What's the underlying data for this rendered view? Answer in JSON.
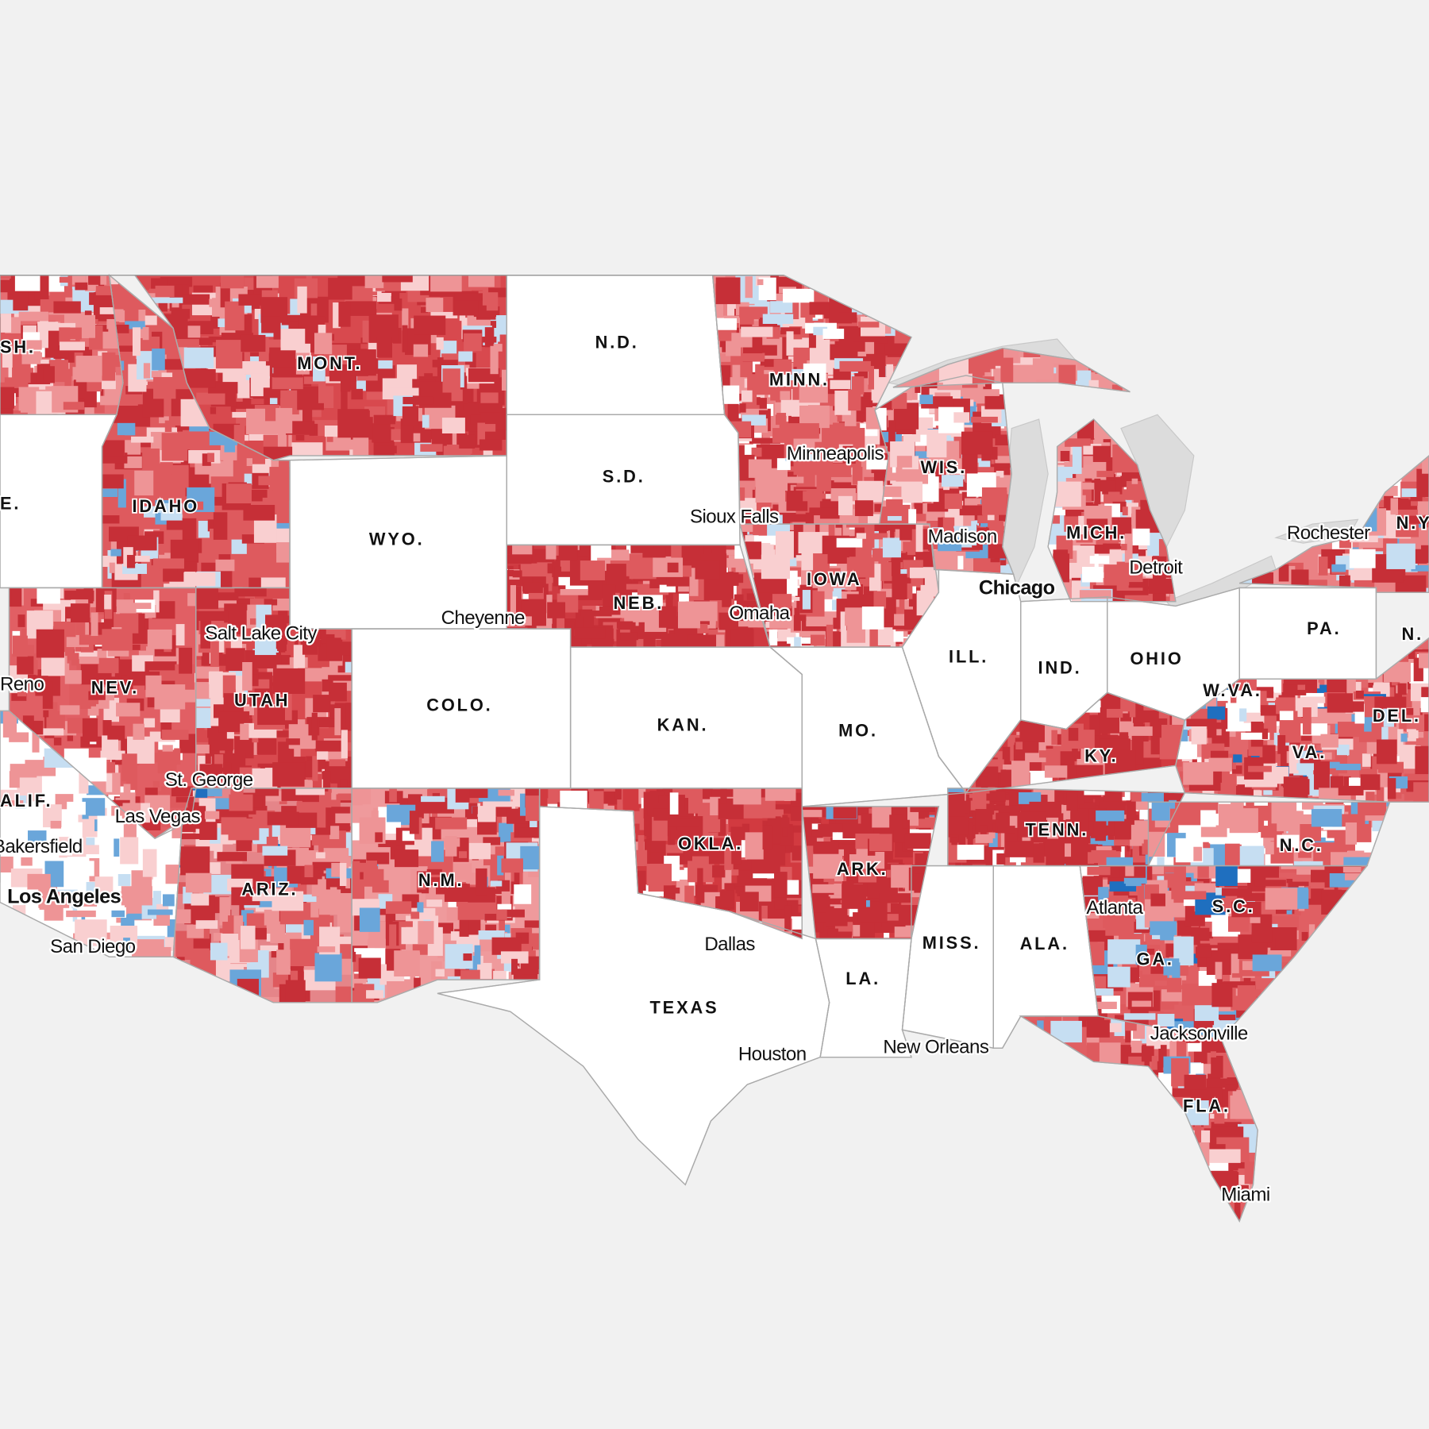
{
  "map": {
    "state_labels": [
      "SH.",
      "MONT.",
      "N.D.",
      "MINN.",
      "S.D.",
      "IDAHO",
      "E.",
      "WYO.",
      "WIS.",
      "MICH.",
      "N.Y",
      "NEB.",
      "IOWA",
      "PA.",
      "N.",
      "ILL.",
      "IND.",
      "OHIO",
      "NEV.",
      "UTAH",
      "COLO.",
      "KAN.",
      "MO.",
      "W.VA.",
      "DEL.",
      "KY.",
      "VA.",
      "ALIF.",
      "TENN.",
      "OKLA.",
      "N.C.",
      "ARK.",
      "ARIZ.",
      "N.M.",
      "S.C.",
      "MISS.",
      "ALA.",
      "GA.",
      "LA.",
      "TEXAS",
      "FLA."
    ],
    "city_labels": [
      "Minneapolis",
      "Sioux Falls",
      "Madison",
      "Rochester",
      "Detroit",
      "Chicago",
      "Omaha",
      "Cheyenne",
      "Salt Lake City",
      "Reno",
      "St. George",
      "Las Vegas",
      "Bakersfield",
      "Los Angeles",
      "San Diego",
      "Dallas",
      "Houston",
      "New Orleans",
      "Atlanta",
      "Jacksonville",
      "Miami"
    ]
  }
}
